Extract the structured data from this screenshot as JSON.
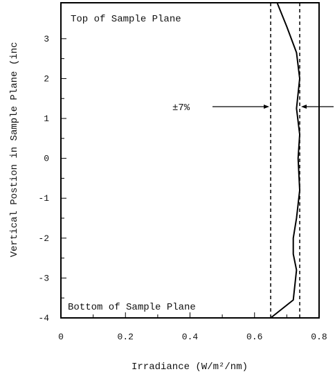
{
  "chart_data": {
    "type": "line",
    "xlabel": "Irradiance (W/m²/nm)",
    "ylabel": "Vertical Postion in Sample Plane (inc",
    "xlim": [
      0,
      0.8
    ],
    "ylim": [
      -4,
      3.9
    ],
    "x_ticks": [
      "0",
      "0.2",
      "0.4",
      "0.6",
      "0.8"
    ],
    "y_ticks": [
      "-4",
      "-3",
      "-2",
      "-1",
      "0",
      "1",
      "2",
      "3"
    ],
    "x_tick_values": [
      0,
      0.2,
      0.4,
      0.6,
      0.8
    ],
    "y_tick_values": [
      -4,
      -3,
      -2,
      -1,
      0,
      1,
      2,
      3
    ],
    "top_annotation": "Top of Sample Plane",
    "bottom_annotation": "Bottom of Sample Plane",
    "tolerance_label": "±7%",
    "tolerance_bounds": [
      0.65,
      0.74
    ],
    "series": [
      {
        "x": [
          0.65,
          0.72,
          0.73,
          0.72,
          0.72,
          0.73,
          0.74,
          0.735,
          0.74,
          0.73,
          0.74,
          0.73,
          0.7,
          0.67
        ],
        "y": [
          -4,
          -3.55,
          -2.8,
          -2.4,
          -2.0,
          -1.5,
          -0.8,
          0,
          0.6,
          1.25,
          2.0,
          2.65,
          3.3,
          3.9
        ]
      }
    ]
  }
}
